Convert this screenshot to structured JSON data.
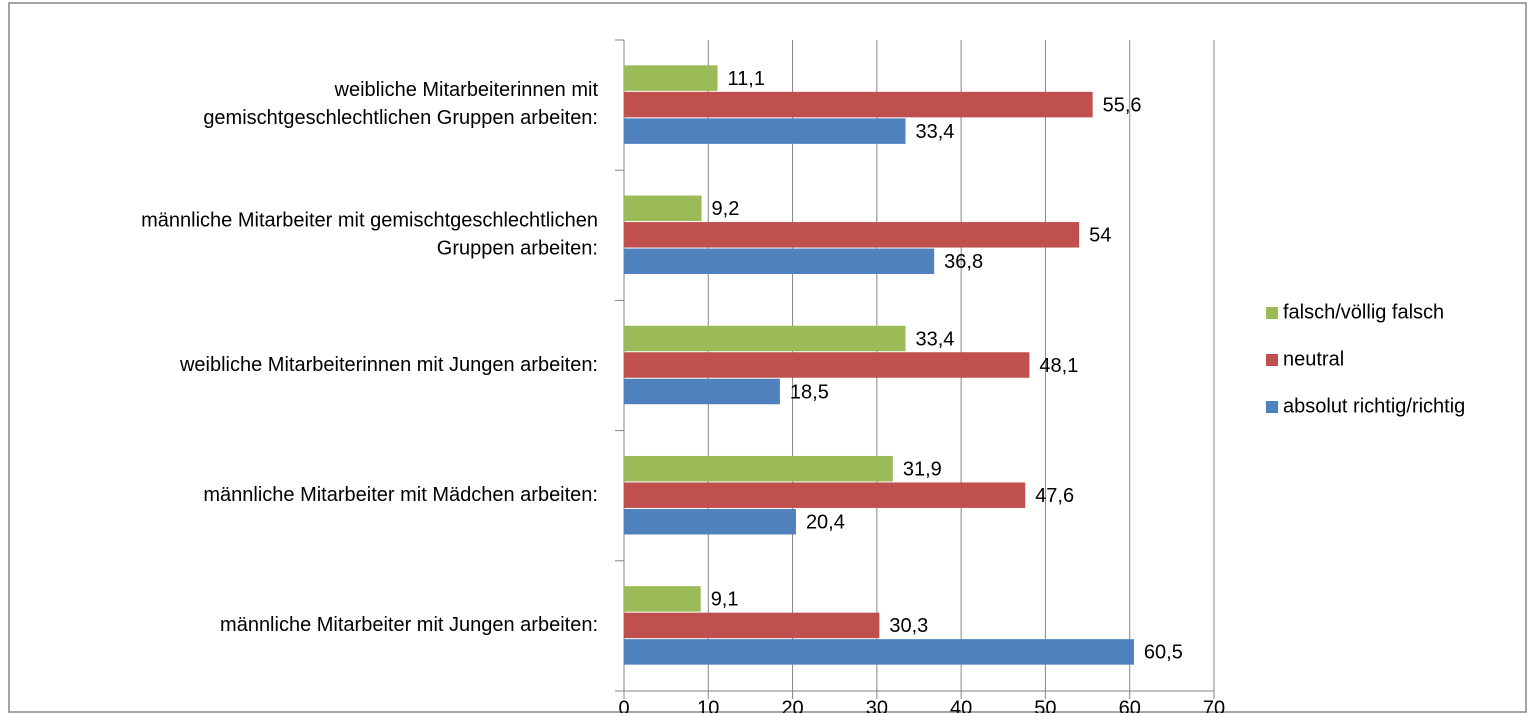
{
  "chart_data": {
    "type": "bar",
    "orientation": "horizontal",
    "categories": [
      "weibliche Mitarbeiterinnen mit\ngemischtgeschlechtlichen Gruppen arbeiten:",
      "männliche Mitarbeiter mit gemischtgeschlechtlichen\nGruppen arbeiten:",
      "weibliche Mitarbeiterinnen mit Jungen arbeiten:",
      "männliche Mitarbeiter mit Mädchen arbeiten:",
      "männliche Mitarbeiter mit Jungen arbeiten:"
    ],
    "series": [
      {
        "name": "falsch/völlig falsch",
        "color": "#9bbb59",
        "values": [
          11.1,
          9.2,
          33.4,
          31.9,
          9.1
        ],
        "value_labels": [
          "11,1",
          "9,2",
          "33,4",
          "31,9",
          "9,1"
        ]
      },
      {
        "name": "neutral",
        "color": "#c0504d",
        "values": [
          55.6,
          54,
          48.1,
          47.6,
          30.3
        ],
        "value_labels": [
          "55,6",
          "54",
          "48,1",
          "47,6",
          "30,3"
        ]
      },
      {
        "name": "absolut richtig/richtig",
        "color": "#4f81bd",
        "values": [
          33.4,
          36.8,
          18.5,
          20.4,
          60.5
        ],
        "value_labels": [
          "33,4",
          "36,8",
          "18,5",
          "20,4",
          "60,5"
        ]
      }
    ],
    "xlim": [
      0,
      70
    ],
    "xticks": [
      0,
      10,
      20,
      30,
      40,
      50,
      60,
      70
    ],
    "grid": true,
    "legend": "right"
  }
}
